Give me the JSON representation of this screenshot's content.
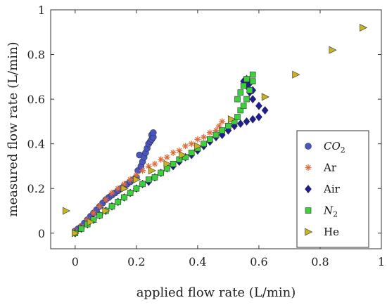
{
  "chart_data": {
    "type": "scatter",
    "title": "",
    "xlabel": "applied flow rate (L/min)",
    "ylabel": "measured flow rate (L/min)",
    "xlim": [
      -0.08,
      1.0
    ],
    "ylim": [
      -0.07,
      1.0
    ],
    "xticks": [
      "0",
      "0.2",
      "0.4",
      "0.6",
      "0.8",
      "1"
    ],
    "yticks": [
      "0",
      "0.2",
      "0.4",
      "0.6",
      "0.8",
      "1"
    ],
    "xtick_values": [
      0,
      0.2,
      0.4,
      0.6,
      0.8,
      1.0
    ],
    "ytick_values": [
      0,
      0.2,
      0.4,
      0.6,
      0.8,
      1.0
    ],
    "legend_position": "bottom-right",
    "series": [
      {
        "name": "CO2",
        "name_main": "CO",
        "name_sub": "2",
        "marker": "circle",
        "color": "#4a55c4",
        "x": [
          0.0,
          0.01,
          0.02,
          0.03,
          0.04,
          0.05,
          0.06,
          0.07,
          0.08,
          0.09,
          0.1,
          0.11,
          0.12,
          0.13,
          0.14,
          0.15,
          0.16,
          0.17,
          0.18,
          0.19,
          0.2,
          0.205,
          0.21,
          0.215,
          0.22,
          0.225,
          0.23,
          0.235,
          0.24,
          0.245,
          0.25,
          0.25,
          0.255,
          0.255
        ],
        "y": [
          0.01,
          0.02,
          0.03,
          0.045,
          0.06,
          0.075,
          0.09,
          0.105,
          0.12,
          0.135,
          0.15,
          0.16,
          0.17,
          0.18,
          0.19,
          0.2,
          0.21,
          0.22,
          0.23,
          0.24,
          0.25,
          0.28,
          0.35,
          0.3,
          0.32,
          0.34,
          0.36,
          0.38,
          0.4,
          0.41,
          0.42,
          0.44,
          0.43,
          0.45
        ]
      },
      {
        "name": "Ar",
        "marker": "star",
        "color": "#e06a3a",
        "x": [
          0.0,
          0.02,
          0.04,
          0.06,
          0.08,
          0.1,
          0.12,
          0.14,
          0.16,
          0.18,
          0.2,
          0.22,
          0.24,
          0.26,
          0.28,
          0.3,
          0.32,
          0.34,
          0.36,
          0.38,
          0.4,
          0.42,
          0.44,
          0.46,
          0.47,
          0.48
        ],
        "y": [
          0.01,
          0.03,
          0.06,
          0.09,
          0.12,
          0.15,
          0.18,
          0.2,
          0.22,
          0.24,
          0.26,
          0.28,
          0.3,
          0.31,
          0.33,
          0.34,
          0.36,
          0.37,
          0.39,
          0.4,
          0.42,
          0.43,
          0.45,
          0.46,
          0.48,
          0.5
        ]
      },
      {
        "name": "Air",
        "marker": "diamond",
        "color": "#1c1c9c",
        "x": [
          0.0,
          0.02,
          0.04,
          0.06,
          0.08,
          0.1,
          0.12,
          0.14,
          0.16,
          0.18,
          0.2,
          0.22,
          0.24,
          0.26,
          0.28,
          0.3,
          0.32,
          0.34,
          0.36,
          0.38,
          0.4,
          0.42,
          0.44,
          0.46,
          0.48,
          0.5,
          0.52,
          0.54,
          0.56,
          0.58,
          0.6,
          0.62,
          0.6,
          0.58,
          0.57,
          0.56,
          0.55,
          0.56,
          0.57,
          0.58
        ],
        "y": [
          0.0,
          0.02,
          0.04,
          0.06,
          0.08,
          0.1,
          0.12,
          0.14,
          0.16,
          0.18,
          0.2,
          0.22,
          0.23,
          0.25,
          0.27,
          0.29,
          0.3,
          0.32,
          0.34,
          0.35,
          0.37,
          0.39,
          0.41,
          0.43,
          0.44,
          0.46,
          0.48,
          0.49,
          0.5,
          0.51,
          0.52,
          0.55,
          0.57,
          0.6,
          0.63,
          0.66,
          0.68,
          0.69,
          0.67,
          0.64
        ]
      },
      {
        "name": "N2",
        "name_main": "N",
        "name_sub": "2",
        "marker": "square",
        "color": "#3ad23a",
        "x": [
          0.0,
          0.02,
          0.04,
          0.06,
          0.08,
          0.1,
          0.12,
          0.14,
          0.16,
          0.18,
          0.2,
          0.22,
          0.24,
          0.26,
          0.28,
          0.3,
          0.32,
          0.34,
          0.36,
          0.38,
          0.4,
          0.42,
          0.44,
          0.46,
          0.48,
          0.5,
          0.52,
          0.53,
          0.54,
          0.55,
          0.56,
          0.57,
          0.58,
          0.58,
          0.56,
          0.55,
          0.54,
          0.53
        ],
        "y": [
          0.0,
          0.02,
          0.04,
          0.06,
          0.08,
          0.1,
          0.12,
          0.14,
          0.16,
          0.18,
          0.2,
          0.22,
          0.24,
          0.25,
          0.27,
          0.29,
          0.31,
          0.33,
          0.34,
          0.36,
          0.38,
          0.4,
          0.42,
          0.44,
          0.46,
          0.48,
          0.5,
          0.52,
          0.55,
          0.57,
          0.6,
          0.64,
          0.68,
          0.71,
          0.69,
          0.66,
          0.63,
          0.6
        ]
      },
      {
        "name": "He",
        "marker": "triangle-right",
        "color": "#c8b41e",
        "x": [
          -0.03,
          0.0,
          0.05,
          0.1,
          0.16,
          0.2,
          0.25,
          0.3,
          0.35,
          0.4,
          0.51,
          0.62,
          0.72,
          0.84,
          0.94
        ],
        "y": [
          0.1,
          0.0,
          0.05,
          0.1,
          0.2,
          0.24,
          0.28,
          0.31,
          0.35,
          0.39,
          0.51,
          0.61,
          0.71,
          0.82,
          0.92
        ]
      }
    ]
  }
}
